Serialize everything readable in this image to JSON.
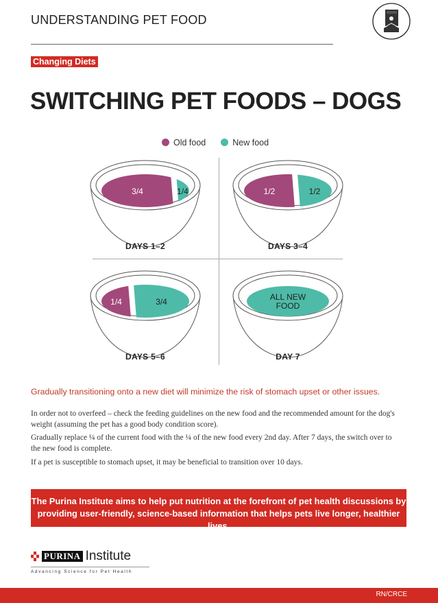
{
  "header": {
    "title": "UNDERSTANDING PET FOOD",
    "icon": "pet-food-bag-icon"
  },
  "tag": "Changing Diets",
  "title": "SWITCHING PET FOODS – DOGS",
  "legend": [
    {
      "label": "Old food",
      "color": "#a3487b"
    },
    {
      "label": "New food",
      "color": "#4dbba8"
    }
  ],
  "bowls": [
    {
      "label": "DAYS 1–2",
      "old": "3/4",
      "new": "1/4",
      "old_fraction": 0.75
    },
    {
      "label": "DAYS 3–4",
      "old": "1/2",
      "new": "1/2",
      "old_fraction": 0.5
    },
    {
      "label": "DAYS 5–6",
      "old": "1/4",
      "new": "3/4",
      "old_fraction": 0.25
    },
    {
      "label": "DAY 7",
      "new": "ALL NEW FOOD",
      "old_fraction": 0
    }
  ],
  "lead": "Gradually transitioning onto a new diet will minimize the risk of stomach upset or other issues.",
  "paragraphs": [
    "In order not to overfeed – check the feeding guidelines on the new food and the recommended amount for the dog's weight (assuming the pet has a good body condition score).",
    "Gradually replace ¼ of the current food with the ¼ of the new food every 2nd day. After 7 days, the switch over to the new food is complete.",
    "If a pet is susceptible to stomach upset, it may be beneficial to transition over 10 days."
  ],
  "banner": "The Purina Institute aims to help put nutrition at the forefront of pet health discussions by providing user-friendly, science-based information that helps pets live longer, healthier lives.",
  "logo": {
    "brand": "PURINA",
    "name": "Institute",
    "tagline": "Advancing Science for Pet Health"
  },
  "footer": {
    "code": "RN/CRCE"
  }
}
